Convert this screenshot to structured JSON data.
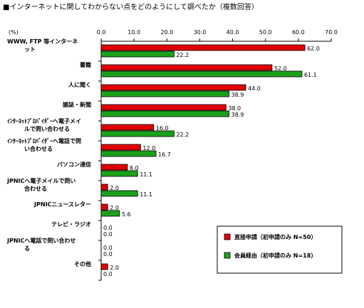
{
  "chart_data": {
    "type": "bar",
    "orientation": "horizontal",
    "title": "■インターネットに関してわからない点をどのようにして調べたか（複数回答）",
    "unit_label": "(%)",
    "xlim": [
      0,
      70
    ],
    "ticks": [
      "0.0",
      "10.0",
      "20.0",
      "30.0",
      "40.0",
      "50.0",
      "60.0",
      "70.0"
    ],
    "categories": [
      [
        "WWW, FTP 等インターネ",
        "ット"
      ],
      [
        "書籍"
      ],
      [
        "人に聞く"
      ],
      [
        "雑誌・新聞"
      ],
      [
        "ｲﾝﾀｰﾈｯﾄﾌﾟﾛﾊﾞｲﾀﾞｰへ電子メイ",
        "ルで問い合わせる"
      ],
      [
        "ｲﾝﾀｰﾈｯﾄﾌﾟﾛﾊﾞｲﾀﾞｰへ電話で問",
        "い合わせる"
      ],
      [
        "パソコン通信"
      ],
      [
        "JPNICへ電子メイルで問い",
        "合わせる"
      ],
      [
        "JPNICニュースレター"
      ],
      [
        "テレビ・ラジオ"
      ],
      [
        "JPNICへ電話で問い合わせ",
        "る"
      ],
      [
        "その他"
      ]
    ],
    "series": [
      {
        "name": "直接申請（初申請のみ N=50）",
        "color": "#e00000",
        "values": [
          62.0,
          52.0,
          44.0,
          38.0,
          16.0,
          12.0,
          8.0,
          2.0,
          2.0,
          0.0,
          0.0,
          2.0
        ],
        "labels": [
          "62.0",
          "52.0",
          "44.0",
          "38.0",
          "16.0",
          "12.0",
          "8.0",
          "2.0",
          "2.0",
          "0.0",
          "0.0",
          "2.0"
        ]
      },
      {
        "name": "会員経由（初申請のみ N=18）",
        "color": "#1ca01c",
        "values": [
          22.2,
          61.1,
          38.9,
          38.9,
          22.2,
          16.7,
          11.1,
          11.1,
          5.6,
          0.0,
          0.0,
          0.0
        ],
        "labels": [
          "22.2",
          "61.1",
          "38.9",
          "38.9",
          "22.2",
          "16.7",
          "11.1",
          "11.1",
          "5.6",
          "0.0",
          "0.0",
          "0.0"
        ]
      }
    ],
    "legend_position": "bottom-right",
    "grid": false
  }
}
